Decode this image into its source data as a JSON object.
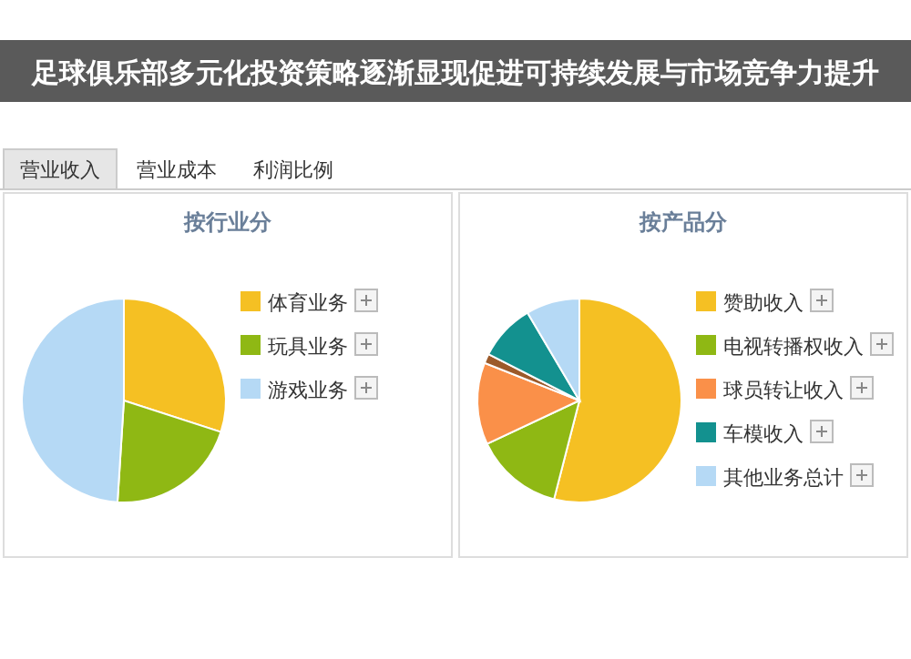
{
  "chart_data": [
    {
      "type": "pie",
      "title": "按行业分",
      "annotations": [
        "足球俱乐部多元化投资策略逐渐显现促进可持续发展与市场竞争力提升",
        "营业收入",
        "营业成本",
        "利润比例"
      ],
      "categories": [
        "体育业务",
        "玩具业务",
        "游戏业务"
      ],
      "values": [
        30,
        21,
        49
      ],
      "colors": [
        "#f5c023",
        "#8fb814",
        "#b5d9f5"
      ],
      "legend": "right"
    },
    {
      "type": "pie",
      "title": "按产品分",
      "categories": [
        "赞助收入",
        "电视转播权收入",
        "球员转让收入",
        null,
        "车模收入",
        "其他业务总计"
      ],
      "values": [
        54,
        14,
        13,
        1.5,
        9,
        8.5
      ],
      "colors": [
        "#f5c023",
        "#8fb814",
        "#fa9049",
        "#9c5a2a",
        "#13918f",
        "#b5d9f5"
      ],
      "legend": "right"
    }
  ]
}
